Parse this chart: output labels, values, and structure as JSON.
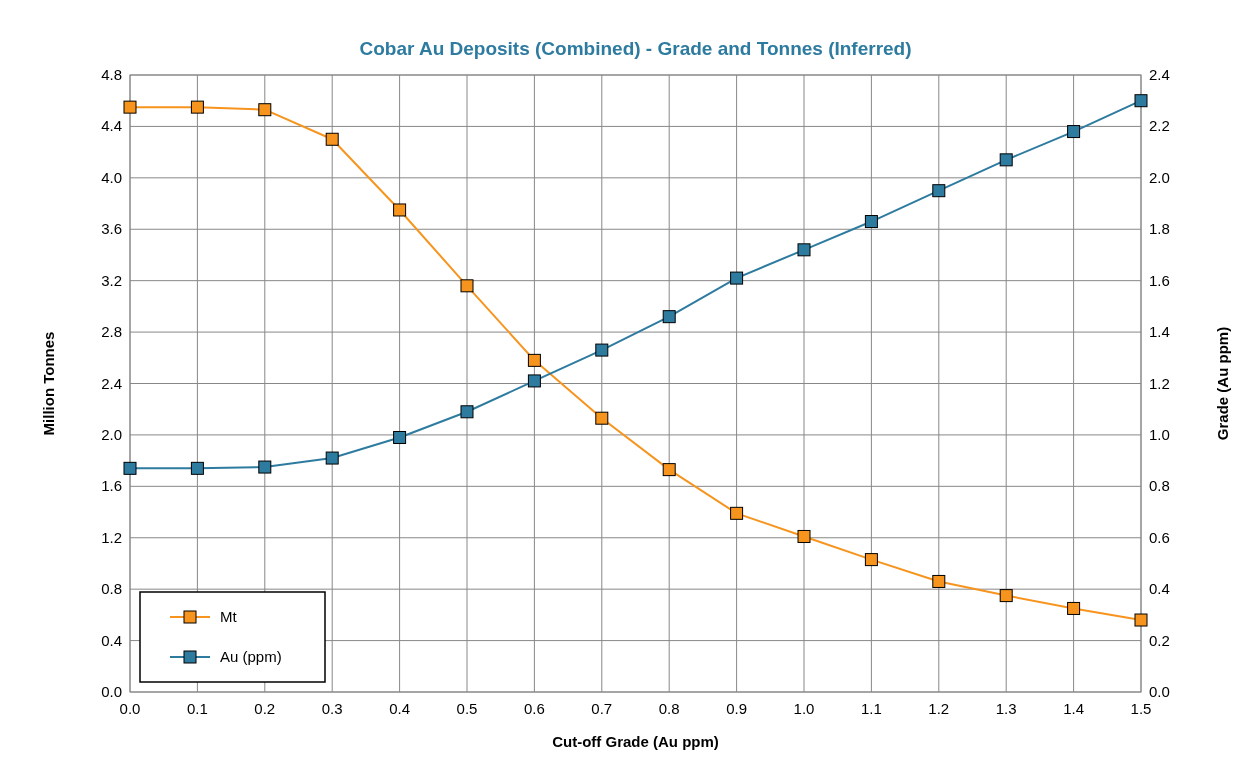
{
  "chart_data": {
    "type": "line",
    "title": "Cobar Au Deposits (Combined) - Grade and Tonnes (Inferred)",
    "xlabel": "Cut-off Grade (Au ppm)",
    "ylabel": "Million Tonnes",
    "y2label": "Grade (Au ppm)",
    "x": [
      0,
      0.1,
      0.2,
      0.3,
      0.4,
      0.5,
      0.6,
      0.7,
      0.8,
      0.9,
      1.0,
      1.1,
      1.2,
      1.3,
      1.4,
      1.5
    ],
    "xlim": [
      0,
      1.5
    ],
    "xticks": [
      {
        "value": 0,
        "label": "0.0"
      },
      0.1,
      0.2,
      0.3,
      0.4,
      0.5,
      0.6,
      0.7,
      0.8,
      0.9,
      {
        "value": 1,
        "label": "1.0"
      },
      1.1,
      1.2,
      1.3,
      1.4,
      1.5
    ],
    "ylim": [
      0,
      4.8
    ],
    "yticks": [
      {
        "value": 0,
        "label": "0.0"
      },
      0.4,
      0.8,
      1.2,
      1.6,
      {
        "value": 2,
        "label": "2.0"
      },
      2.4,
      2.8,
      3.2,
      3.6,
      {
        "value": 4,
        "label": "4.0"
      },
      4.4,
      4.8
    ],
    "y2lim": [
      0,
      2.4
    ],
    "y2ticks": [
      {
        "value": 0,
        "label": "0.0"
      },
      0.2,
      0.4,
      0.6,
      0.8,
      {
        "value": 1,
        "label": "1.0"
      },
      1.2,
      1.4,
      1.6,
      1.8,
      {
        "value": 2,
        "label": "2.0"
      },
      2.2,
      2.4
    ],
    "series": [
      {
        "name": "Mt",
        "color": "#f7941d",
        "values": [
          4.55,
          4.55,
          4.53,
          4.3,
          3.75,
          3.16,
          2.58,
          2.13,
          1.73,
          1.39,
          1.21,
          1.03,
          0.86,
          0.75,
          0.65,
          0.56
        ]
      },
      {
        "name": "Au (ppm)",
        "color": "#2e7ba0",
        "axis": "y2",
        "values": [
          0.87,
          0.87,
          0.875,
          0.91,
          0.99,
          1.09,
          1.21,
          1.33,
          1.46,
          1.61,
          1.72,
          1.83,
          1.95,
          2.07,
          2.18,
          2.3
        ]
      }
    ],
    "grid": true,
    "legend": "bottom left",
    "marker": "square",
    "line_style": "solid"
  }
}
